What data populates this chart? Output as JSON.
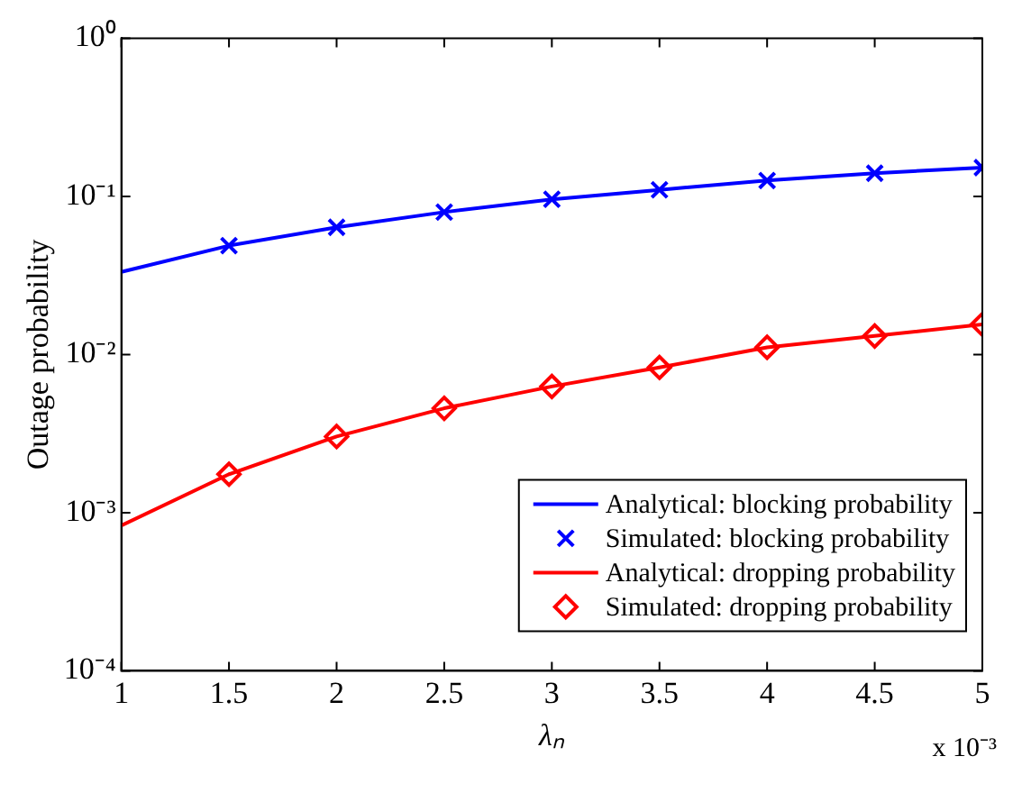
{
  "chart_data": {
    "type": "line",
    "xlabel": "λₙ",
    "ylabel": "Outage probability",
    "log": "y",
    "grid": false,
    "legend": "bottom right",
    "line_style": "solid",
    "xlim": [
      1,
      5
    ],
    "xticks": [
      1,
      1.5,
      2,
      2.5,
      3,
      3.5,
      4,
      4.5,
      5
    ],
    "ylim": [
      0.0001,
      1
    ],
    "yticks": [
      {
        "value": 0.0001,
        "label": "10⁻⁴"
      },
      {
        "value": 0.001,
        "label": "10⁻³"
      },
      {
        "value": 0.01,
        "label": "10⁻²"
      },
      {
        "value": 0.1,
        "label": "10⁻¹"
      },
      {
        "value": 1,
        "label": "10⁰"
      }
    ],
    "annotations": [
      "x 10⁻³"
    ],
    "series": [
      {
        "name": "Analytical: blocking probability",
        "type": "line",
        "marker": "none",
        "color": "#0000ff",
        "x": [
          1,
          1.5,
          2,
          2.5,
          3,
          3.5,
          4,
          4.5,
          5
        ],
        "values": [
          0.0333,
          0.0488,
          0.0637,
          0.0795,
          0.0958,
          0.11,
          0.126,
          0.14,
          0.152
        ]
      },
      {
        "name": "Simulated: blocking probability",
        "type": "scatter",
        "marker": "cross",
        "color": "#0000ff",
        "x": [
          1.5,
          2,
          2.5,
          3,
          3.5,
          4,
          4.5,
          5
        ],
        "values": [
          0.0488,
          0.0637,
          0.0795,
          0.0958,
          0.11,
          0.126,
          0.14,
          0.152
        ]
      },
      {
        "name": "Analytical: dropping probability",
        "type": "line",
        "marker": "none",
        "color": "#ff0000",
        "x": [
          1,
          1.5,
          2,
          2.5,
          3,
          3.5,
          4,
          4.5,
          5
        ],
        "values": [
          0.00083,
          0.00175,
          0.00303,
          0.00457,
          0.00628,
          0.00828,
          0.0111,
          0.0131,
          0.0155
        ]
      },
      {
        "name": "Simulated: dropping probability",
        "type": "scatter",
        "marker": "diamond",
        "color": "#ff0000",
        "x": [
          1.5,
          2,
          2.5,
          3,
          3.5,
          4,
          4.5,
          5
        ],
        "values": [
          0.00175,
          0.00303,
          0.00457,
          0.00628,
          0.00828,
          0.0111,
          0.0131,
          0.0155
        ]
      }
    ]
  }
}
